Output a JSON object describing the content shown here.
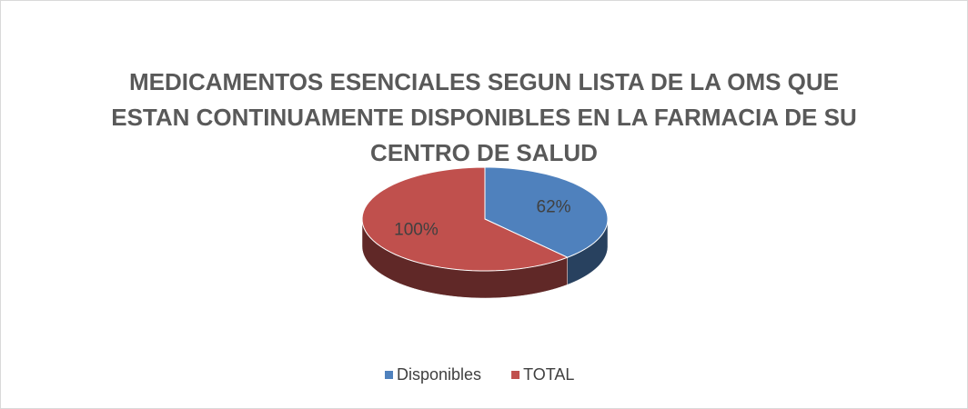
{
  "chart_data": {
    "type": "pie",
    "title": "MEDICAMENTOS ESENCIALES SEGUN LISTA DE LA OMS QUE ESTAN CONTINUAMENTE DISPONIBLES EN LA FARMACIA DE SU CENTRO DE SALUD",
    "categories": [
      "Disponibles",
      "TOTAL"
    ],
    "values": [
      62,
      100
    ],
    "value_labels": [
      "62%",
      "100%"
    ],
    "colors": [
      "#4f81bd",
      "#c0504d"
    ],
    "legend": "bottom"
  }
}
